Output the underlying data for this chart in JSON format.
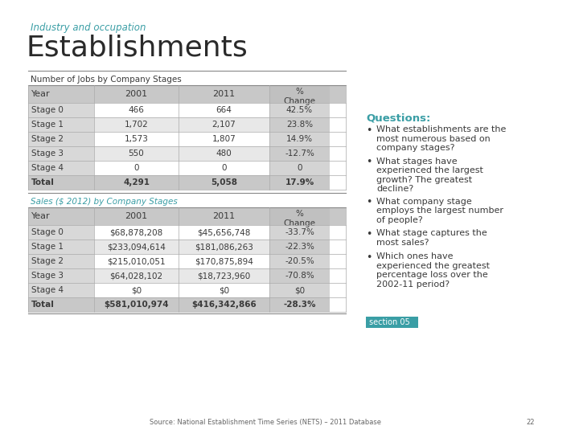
{
  "title_sub": "Industry and occupation",
  "title_main": "Establishments",
  "table1_header": "Number of Jobs by Company Stages",
  "table1_col_headers": [
    "Year",
    "2001",
    "2011",
    "% \nChange"
  ],
  "table1_rows": [
    [
      "Stage 0",
      "466",
      "664",
      "42.5%"
    ],
    [
      "Stage 1",
      "1,702",
      "2,107",
      "23.8%"
    ],
    [
      "Stage 2",
      "1,573",
      "1,807",
      "14.9%"
    ],
    [
      "Stage 3",
      "550",
      "480",
      "-12.7%"
    ],
    [
      "Stage 4",
      "0",
      "0",
      "0"
    ],
    [
      "Total",
      "4,291",
      "5,058",
      "17.9%"
    ]
  ],
  "table2_header": "Sales ($ 2012) by Company Stages",
  "table2_col_headers": [
    "Year",
    "2001",
    "2011",
    "% \nChange"
  ],
  "table2_rows": [
    [
      "Stage 0",
      "$68,878,208",
      "$45,656,748",
      "-33.7%"
    ],
    [
      "Stage 1",
      "$233,094,614",
      "$181,086,263",
      "-22.3%"
    ],
    [
      "Stage 2",
      "$215,010,051",
      "$170,875,894",
      "-20.5%"
    ],
    [
      "Stage 3",
      "$64,028,102",
      "$18,723,960",
      "-70.8%"
    ],
    [
      "Stage 4",
      "$0",
      "$0",
      "$0"
    ],
    [
      "Total",
      "$581,010,974",
      "$416,342,866",
      "-28.3%"
    ]
  ],
  "questions_title": "Questions:",
  "questions": [
    "What establishments are the\nmost numerous based on\ncompany stages?",
    "What stages have\nexperienced the largest\ngrowth? The greatest\ndecline?",
    "What company stage\nemploys the largest number\nof people?",
    "What stage captures the\nmost sales?",
    "Which ones have\nexperienced the greatest\npercentage loss over the\n2002-11 period?"
  ],
  "footer": "Source: National Establishment Time Series (NETS) – 2011 Database",
  "footer_num": "22",
  "section_label": "section 05",
  "teal_color": "#3a9ea5",
  "dark_text": "#3a3a3a",
  "header_bg": "#c8c8c8",
  "pct_col_bg": "#c0c0c0",
  "row_bg_white": "#ffffff",
  "row_bg_grey": "#e8e8e8",
  "total_bg": "#c8c8c8",
  "stage_col_bg": "#d8d8d8",
  "line_color": "#888888",
  "table_border": "#aaaaaa"
}
